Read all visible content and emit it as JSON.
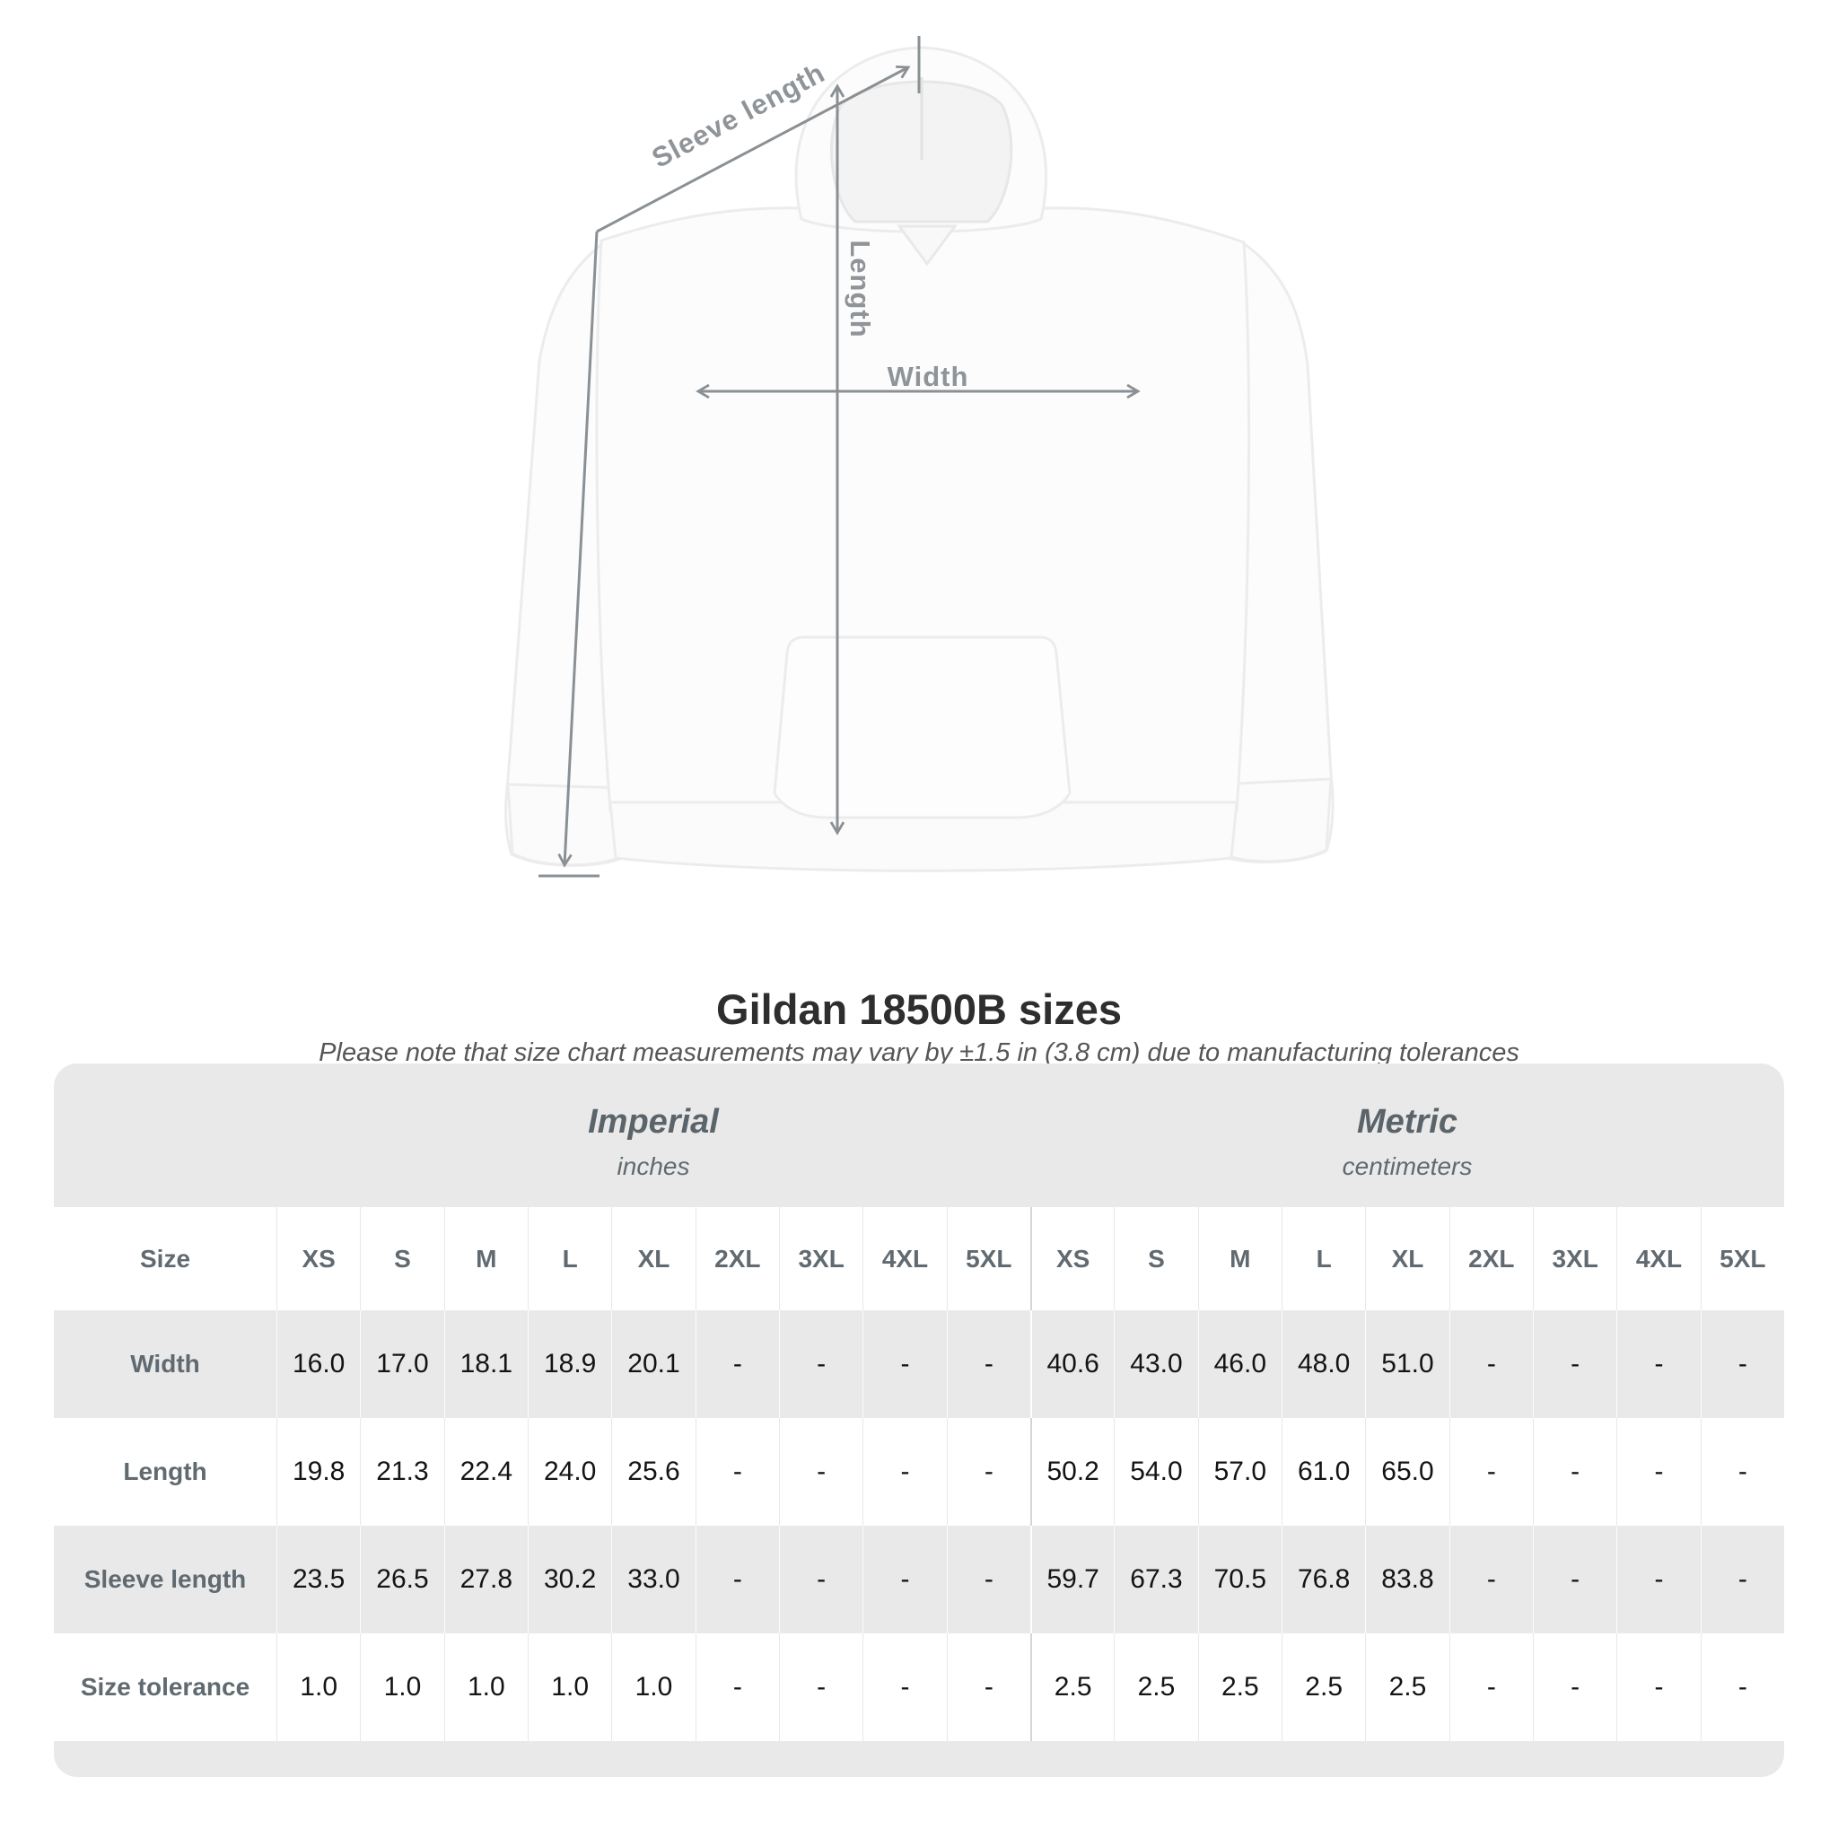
{
  "figure": {
    "sleeve_label": "Sleeve length",
    "length_label": "Length",
    "width_label": "Width"
  },
  "title": "Gildan 18500B sizes",
  "subtitle": "Please note that size chart measurements may vary by ±1.5 in (3.8 cm) due to manufacturing tolerances",
  "colors": {
    "panel_background": "#e9e9ea",
    "measurement_line": "#8a9094",
    "value_text": "#141414",
    "label_text": "#606a70"
  },
  "chart_data": {
    "type": "table",
    "corner_header": "Size",
    "groups": [
      {
        "label": "Imperial",
        "unit": "inches"
      },
      {
        "label": "Metric",
        "unit": "centimeters"
      }
    ],
    "sizes": [
      "XS",
      "S",
      "M",
      "L",
      "XL",
      "2XL",
      "3XL",
      "4XL",
      "5XL"
    ],
    "rows": [
      {
        "label": "Width",
        "imperial": [
          "16.0",
          "17.0",
          "18.1",
          "18.9",
          "20.1",
          "-",
          "-",
          "-",
          "-"
        ],
        "metric": [
          "40.6",
          "43.0",
          "46.0",
          "48.0",
          "51.0",
          "-",
          "-",
          "-",
          "-"
        ]
      },
      {
        "label": "Length",
        "imperial": [
          "19.8",
          "21.3",
          "22.4",
          "24.0",
          "25.6",
          "-",
          "-",
          "-",
          "-"
        ],
        "metric": [
          "50.2",
          "54.0",
          "57.0",
          "61.0",
          "65.0",
          "-",
          "-",
          "-",
          "-"
        ]
      },
      {
        "label": "Sleeve length",
        "imperial": [
          "23.5",
          "26.5",
          "27.8",
          "30.2",
          "33.0",
          "-",
          "-",
          "-",
          "-"
        ],
        "metric": [
          "59.7",
          "67.3",
          "70.5",
          "76.8",
          "83.8",
          "-",
          "-",
          "-",
          "-"
        ]
      },
      {
        "label": "Size tolerance",
        "imperial": [
          "1.0",
          "1.0",
          "1.0",
          "1.0",
          "1.0",
          "-",
          "-",
          "-",
          "-"
        ],
        "metric": [
          "2.5",
          "2.5",
          "2.5",
          "2.5",
          "2.5",
          "-",
          "-",
          "-",
          "-"
        ]
      }
    ]
  }
}
